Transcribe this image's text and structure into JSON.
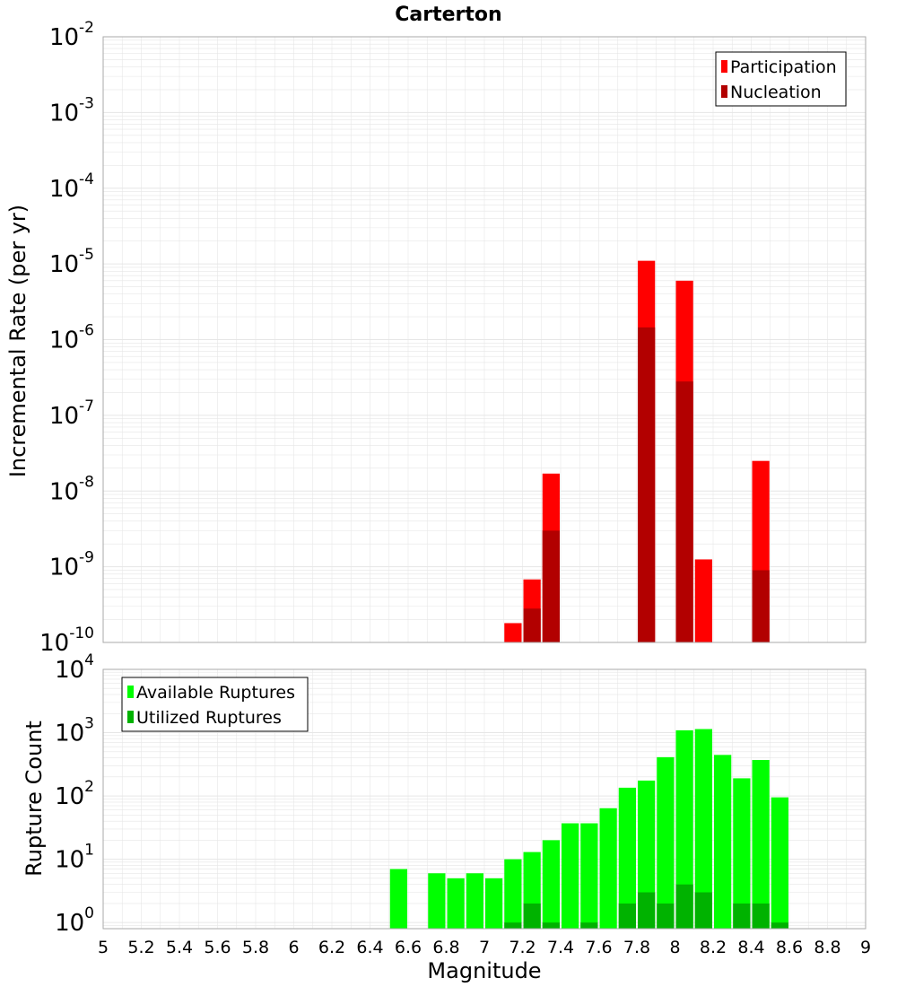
{
  "title": "Carterton",
  "xlabel": "Magnitude",
  "colors": {
    "participation": "#ff0000",
    "nucleation": "#b20000",
    "available": "#00ff00",
    "utilized": "#00b200",
    "grid": "#e6e6e6",
    "frame": "#aaaaaa"
  },
  "x_ticks": [
    "5",
    "5.2",
    "5.4",
    "5.6",
    "5.8",
    "6",
    "6.2",
    "6.4",
    "6.6",
    "6.8",
    "7",
    "7.2",
    "7.4",
    "7.6",
    "7.8",
    "8",
    "8.2",
    "8.4",
    "8.6",
    "8.8",
    "9"
  ],
  "chart_data": [
    {
      "type": "bar",
      "panel": "top",
      "xlabel": "Magnitude",
      "ylabel": "Incremental Rate (per yr)",
      "xlim": [
        5,
        9
      ],
      "ylim": [
        1e-10,
        0.01
      ],
      "yscale": "log",
      "y_tick_exponents": [
        "-10",
        "-9",
        "-8",
        "-7",
        "-6",
        "-5",
        "-4",
        "-3",
        "-2"
      ],
      "grid": true,
      "legend_position": "top-right",
      "bin_width": 0.1,
      "series": [
        {
          "name": "Participation",
          "color": "#ff0000",
          "points": [
            {
              "x": 7.15,
              "y": 1.8e-10
            },
            {
              "x": 7.25,
              "y": 6.8e-10
            },
            {
              "x": 7.35,
              "y": 1.7e-08
            },
            {
              "x": 7.85,
              "y": 1.1e-05
            },
            {
              "x": 8.05,
              "y": 6e-06
            },
            {
              "x": 8.15,
              "y": 1.25e-09
            },
            {
              "x": 8.45,
              "y": 2.5e-08
            }
          ]
        },
        {
          "name": "Nucleation",
          "color": "#b20000",
          "points": [
            {
              "x": 7.25,
              "y": 2.8e-10
            },
            {
              "x": 7.35,
              "y": 3e-09
            },
            {
              "x": 7.85,
              "y": 1.45e-06
            },
            {
              "x": 8.05,
              "y": 2.8e-07
            },
            {
              "x": 8.45,
              "y": 9e-10
            }
          ]
        }
      ]
    },
    {
      "type": "bar",
      "panel": "bottom",
      "xlabel": "Magnitude",
      "ylabel": "Rupture Count",
      "xlim": [
        5,
        9
      ],
      "ylim": [
        0.8,
        10000
      ],
      "yscale": "log",
      "y_tick_exponents": [
        "0",
        "1",
        "2",
        "3",
        "4"
      ],
      "grid": true,
      "legend_position": "top-left",
      "bin_width": 0.1,
      "series": [
        {
          "name": "Available Ruptures",
          "color": "#00ff00",
          "points": [
            {
              "x": 6.55,
              "y": 7
            },
            {
              "x": 6.75,
              "y": 6
            },
            {
              "x": 6.85,
              "y": 5
            },
            {
              "x": 6.95,
              "y": 6
            },
            {
              "x": 7.05,
              "y": 5
            },
            {
              "x": 7.15,
              "y": 10
            },
            {
              "x": 7.25,
              "y": 13
            },
            {
              "x": 7.35,
              "y": 20
            },
            {
              "x": 7.45,
              "y": 37
            },
            {
              "x": 7.55,
              "y": 37
            },
            {
              "x": 7.65,
              "y": 64
            },
            {
              "x": 7.75,
              "y": 135
            },
            {
              "x": 7.85,
              "y": 175
            },
            {
              "x": 7.95,
              "y": 410
            },
            {
              "x": 8.05,
              "y": 1090
            },
            {
              "x": 8.15,
              "y": 1140
            },
            {
              "x": 8.25,
              "y": 445
            },
            {
              "x": 8.35,
              "y": 190
            },
            {
              "x": 8.45,
              "y": 370
            },
            {
              "x": 8.55,
              "y": 95
            }
          ]
        },
        {
          "name": "Utilized Ruptures",
          "color": "#00b200",
          "points": [
            {
              "x": 7.15,
              "y": 1
            },
            {
              "x": 7.25,
              "y": 2
            },
            {
              "x": 7.35,
              "y": 1
            },
            {
              "x": 7.55,
              "y": 1
            },
            {
              "x": 7.75,
              "y": 2
            },
            {
              "x": 7.85,
              "y": 3
            },
            {
              "x": 7.95,
              "y": 2
            },
            {
              "x": 8.05,
              "y": 4
            },
            {
              "x": 8.15,
              "y": 3
            },
            {
              "x": 8.35,
              "y": 2
            },
            {
              "x": 8.45,
              "y": 2
            },
            {
              "x": 8.55,
              "y": 1
            }
          ]
        }
      ]
    }
  ]
}
